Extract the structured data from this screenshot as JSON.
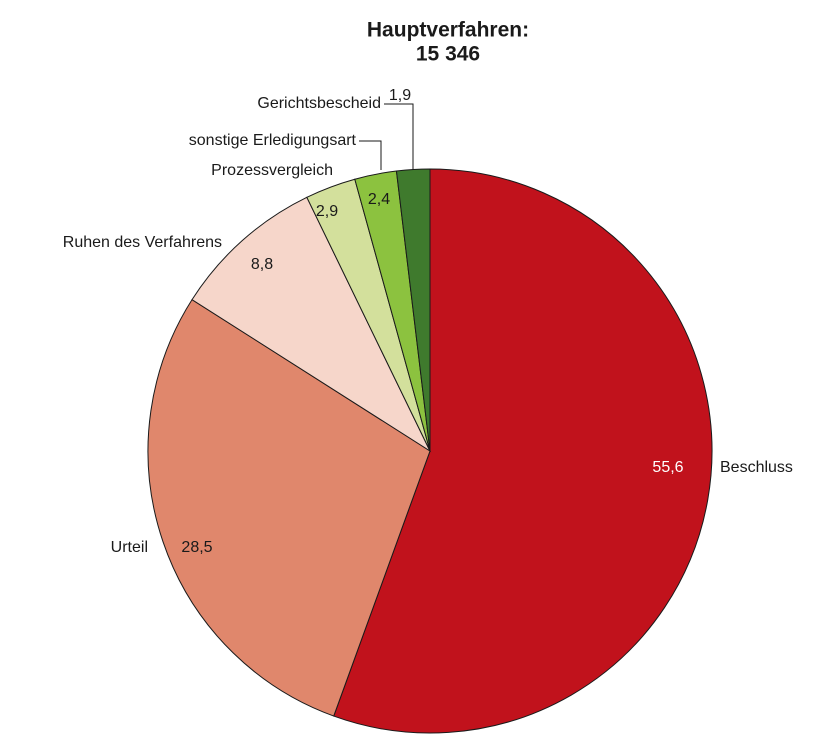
{
  "chart_data": {
    "type": "pie",
    "title": "Hauptverfahren:",
    "subtitle": "15 346",
    "categories": [
      "Beschluss",
      "Urteil",
      "Ruhen des Verfahrens",
      "Prozessvergleich",
      "sonstige Erledigungsart",
      "Gerichtsbescheid"
    ],
    "values": [
      55.6,
      28.5,
      8.8,
      2.9,
      2.4,
      1.9
    ],
    "value_labels": [
      "55,6",
      "28,5",
      "8,8",
      "2,9",
      "2,4",
      "1,9"
    ],
    "colors": [
      "#c1121c",
      "#e0876c",
      "#f6d6ca",
      "#d3e09c",
      "#8cc23f",
      "#3f7a2d"
    ]
  }
}
